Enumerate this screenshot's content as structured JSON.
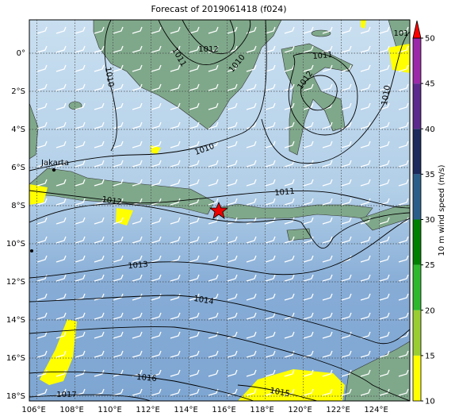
{
  "title": "Forecast of 2019061418 (f024)",
  "map": {
    "xlim": [
      105.6,
      125.6
    ],
    "ylim": [
      -18.25,
      1.75
    ],
    "xticks": [
      {
        "value": 106,
        "label": "106°E"
      },
      {
        "value": 108,
        "label": "108°E"
      },
      {
        "value": 110,
        "label": "110°E"
      },
      {
        "value": 112,
        "label": "112°E"
      },
      {
        "value": 114,
        "label": "114°E"
      },
      {
        "value": 116,
        "label": "116°E"
      },
      {
        "value": 118,
        "label": "118°E"
      },
      {
        "value": 120,
        "label": "120°E"
      },
      {
        "value": 122,
        "label": "122°E"
      },
      {
        "value": 124,
        "label": "124°E"
      }
    ],
    "yticks": [
      {
        "value": 0,
        "label": "0°"
      },
      {
        "value": -2,
        "label": "2°S"
      },
      {
        "value": -4,
        "label": "4°S"
      },
      {
        "value": -6,
        "label": "6°S"
      },
      {
        "value": -8,
        "label": "8°S"
      },
      {
        "value": -10,
        "label": "10°S"
      },
      {
        "value": -12,
        "label": "12°S"
      },
      {
        "value": -14,
        "label": "14°S"
      },
      {
        "value": -16,
        "label": "16°S"
      },
      {
        "value": -18,
        "label": "18°S"
      }
    ],
    "grid": true,
    "place_labels": [
      "Jakarta"
    ],
    "contour_labels": [
      "1012",
      "1011",
      "1010",
      "1010",
      "1011",
      "1012",
      "1010",
      "1010",
      "1011",
      "1012",
      "1013",
      "1014",
      "1016",
      "1017",
      "1015",
      "101"
    ]
  },
  "colorbar": {
    "label": "10 m wind speed (m/s)",
    "lim": [
      10,
      50
    ],
    "ticks": [
      10,
      15,
      20,
      25,
      30,
      35,
      40,
      45,
      50
    ],
    "colors": [
      "#ffff00",
      "#9acd32",
      "#2db82d",
      "#008000",
      "#2b5f8a",
      "#1c2a5c",
      "#5b2a8c",
      "#9b2aa8"
    ],
    "extend_color": "#ff0000"
  }
}
